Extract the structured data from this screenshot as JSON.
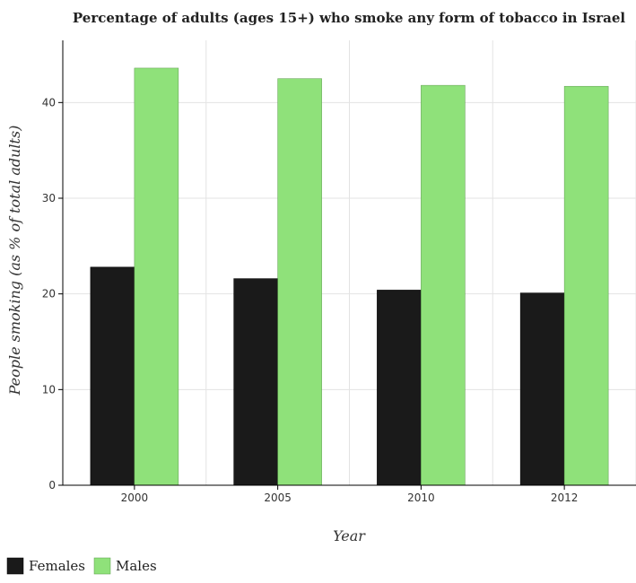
{
  "chart_data": {
    "type": "bar",
    "title": "Percentage of adults (ages 15+) who smoke any form of tobacco in Israel",
    "xlabel": "Year",
    "ylabel": "People smoking (as % of total adults)",
    "categories": [
      "2000",
      "2005",
      "2010",
      "2012"
    ],
    "series": [
      {
        "name": "Females",
        "values": [
          22.8,
          21.6,
          20.4,
          20.1
        ],
        "color": "#1a1a1a"
      },
      {
        "name": "Males",
        "values": [
          43.6,
          42.5,
          41.8,
          41.7
        ],
        "color": "#8fe17a"
      }
    ],
    "ylim": [
      0,
      46.5
    ],
    "yticks": [
      0,
      10,
      20,
      30,
      40
    ],
    "grid": true,
    "legend": "bottom-left"
  }
}
